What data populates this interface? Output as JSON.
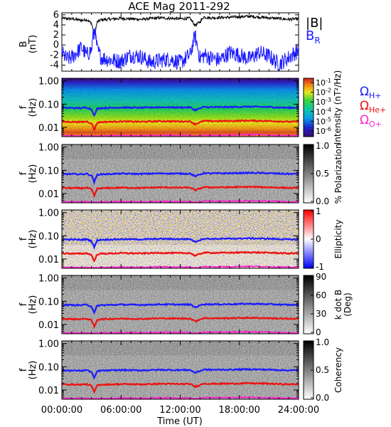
{
  "title": "ACE Mag 2011-292",
  "xlabel": "Time (UT)",
  "x_ticks": [
    "00:00:00",
    "06:00:00",
    "12:00:00",
    "18:00:00",
    "24:00:00"
  ],
  "colors": {
    "btot": "#000000",
    "br": "#1a1aff",
    "h": "#1a1aff",
    "he": "#ee1111",
    "o": "#ff22cc"
  },
  "chart_data": [
    {
      "type": "line",
      "panel": "field",
      "ylabel": "B",
      "yunit": "(nT)",
      "yticks": [
        "6",
        "4",
        "2",
        "0",
        "-2",
        "-4"
      ],
      "ylim": [
        -5.2,
        6.4
      ],
      "xlim": [
        0,
        24
      ],
      "series": [
        {
          "name": "|B|",
          "x": [
            0,
            1,
            2,
            2.5,
            3,
            3.3,
            3.6,
            4,
            6,
            8,
            10,
            12,
            13,
            13.5,
            14,
            14.4,
            15,
            17,
            19,
            21,
            23,
            24
          ],
          "values": [
            5.3,
            5.2,
            4.9,
            5.1,
            4.3,
            2.2,
            4.6,
            5.0,
            5.3,
            5.1,
            5.4,
            5.2,
            5.3,
            3.9,
            4.6,
            5.6,
            5.4,
            5.5,
            5.7,
            5.4,
            5.1,
            5.2
          ]
        },
        {
          "name": "B",
          "subscript": "R",
          "x": [
            0,
            0.5,
            1,
            2,
            2.5,
            3,
            3.3,
            3.6,
            4,
            5,
            6,
            7,
            8,
            9,
            10,
            11,
            12,
            13,
            13.5,
            14,
            14.5,
            15,
            16,
            17,
            18,
            19,
            20,
            21,
            22,
            23,
            24
          ],
          "values": [
            -1.5,
            -2.8,
            -2.5,
            -0.5,
            -2.0,
            -1.0,
            3.5,
            -1.0,
            -2.5,
            -3.0,
            -3.2,
            -2.0,
            -2.3,
            -3.5,
            -3.0,
            -2.8,
            -3.5,
            -2.0,
            2.0,
            -2.6,
            -2.0,
            -2.5,
            -3.0,
            -1.5,
            -2.0,
            -2.8,
            -1.5,
            -2.2,
            -3.8,
            -2.5,
            -1.0
          ]
        }
      ]
    },
    {
      "type": "heatmap",
      "panel": "spectrogram",
      "ylabel": "f",
      "yunit": "(Hz)",
      "yscale": "log",
      "ylim": [
        0.004,
        1.3
      ],
      "yticks": [
        "1.00",
        "0.10",
        "0.01"
      ],
      "colorbar_label": "Intensity (nT²/Hz)",
      "colorbar_ticks": [
        "10-1",
        "10-2",
        "10-3",
        "10-4",
        "10-5",
        "10-6"
      ]
    },
    {
      "type": "heatmap",
      "panel": "polarization",
      "ylabel": "f",
      "yunit": "(Hz)",
      "yscale": "log",
      "yticks": [
        "1.00",
        "0.10",
        "0.01"
      ],
      "colorbar_label": "% Polarization",
      "colorbar_ticks": [
        "1.0",
        "0.5",
        "0.0"
      ]
    },
    {
      "type": "heatmap",
      "panel": "ellipticity",
      "ylabel": "f",
      "yunit": "(Hz)",
      "yscale": "log",
      "yticks": [
        "1.00",
        "0.10",
        "0.01"
      ],
      "colorbar_label": "Ellipticity",
      "colorbar_ticks": [
        "1",
        "0",
        "-1"
      ]
    },
    {
      "type": "heatmap",
      "panel": "kdotb",
      "ylabel": "f",
      "yunit": "(Hz)",
      "yscale": "log",
      "yticks": [
        "1.00",
        "0.10",
        "0.01"
      ],
      "colorbar_label": "k dot B",
      "colorbar_unit": "(Deg)",
      "colorbar_ticks": [
        "90",
        "60",
        "30",
        "0"
      ]
    },
    {
      "type": "heatmap",
      "panel": "coherency",
      "ylabel": "f",
      "yunit": "(Hz)",
      "yscale": "log",
      "yticks": [
        "1.00",
        "0.10",
        "0.01"
      ],
      "colorbar_label": "Coherency",
      "colorbar_ticks": [
        "1.0",
        "0.5",
        "0.0"
      ]
    }
  ],
  "gyro_legend": [
    {
      "symbol": "Ω",
      "sub": "H+"
    },
    {
      "symbol": "Ω",
      "sub": "He+"
    },
    {
      "symbol": "Ω",
      "sub": "O+"
    }
  ],
  "gyrofrequencies": {
    "x": [
      0,
      2,
      2.5,
      3,
      3.3,
      3.6,
      4,
      6,
      8,
      10,
      12,
      13,
      13.5,
      14,
      14.4,
      15,
      17,
      19,
      21,
      23,
      24
    ],
    "H+": [
      0.07,
      0.068,
      0.072,
      0.06,
      0.03,
      0.065,
      0.068,
      0.072,
      0.07,
      0.074,
      0.072,
      0.073,
      0.055,
      0.066,
      0.076,
      0.074,
      0.075,
      0.078,
      0.075,
      0.07,
      0.071
    ]
  }
}
